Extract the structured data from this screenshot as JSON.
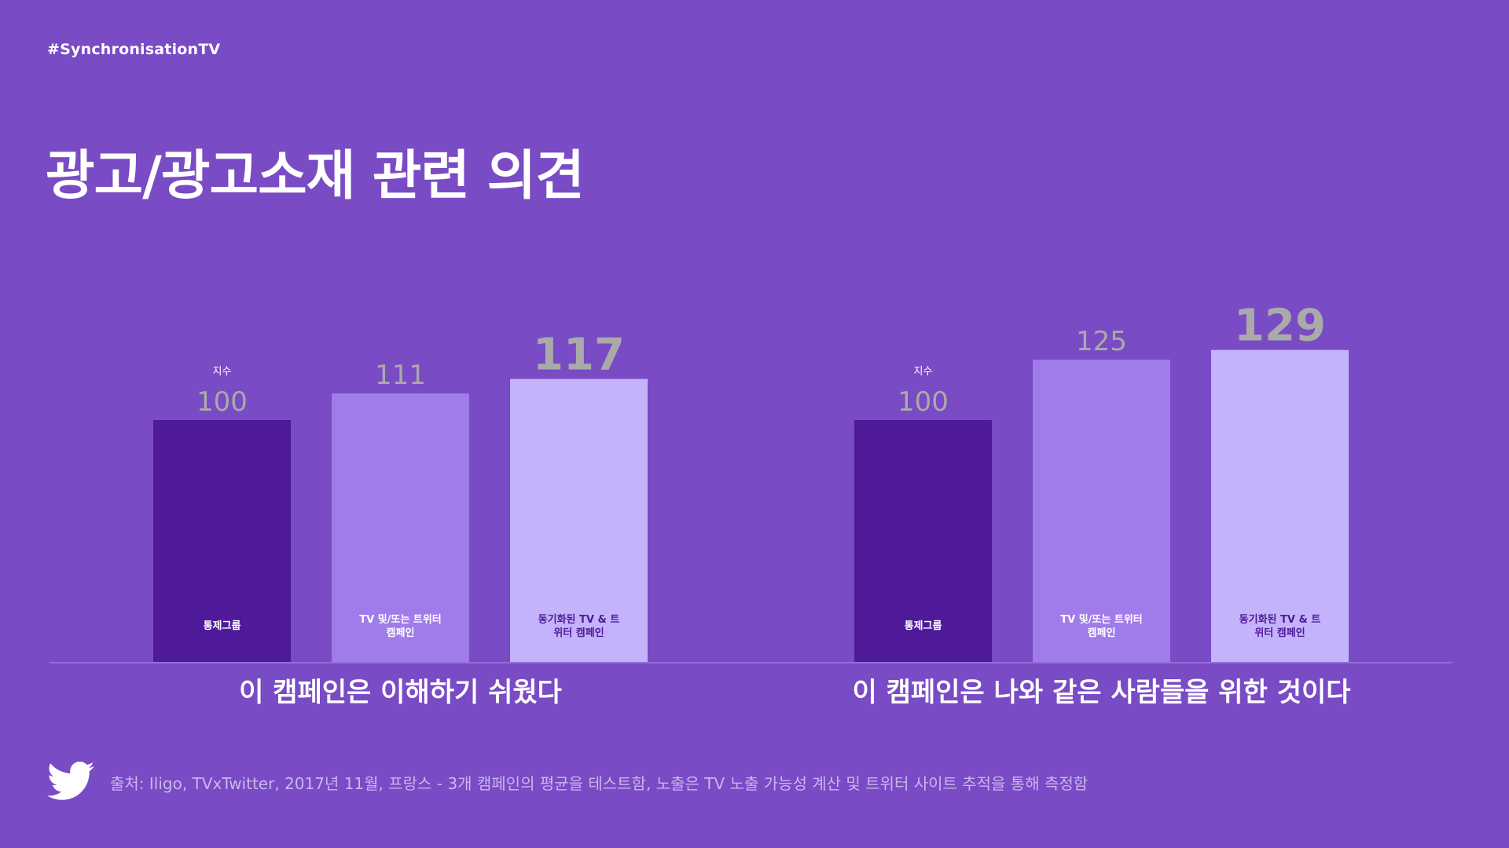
{
  "header": {
    "hashtag": "#SynchronisationTV",
    "title": "광고/광고소재 관련 의견"
  },
  "footer": {
    "source": "출처: Iligo, TVxTwitter, 2017년 11월, 프랑스 - 3개 캠페인의 평균을 테스트함, 노출은 TV 노출 가능성 계산 및 트위터 사이트 추적을 통해 측정함",
    "icon": "twitter-bird-icon"
  },
  "colors": {
    "background": "#794bc4",
    "control": "#4f1a99",
    "tv_or_twitter": "#a07bea",
    "synchronized": "#c4b3fb",
    "value_label": "#aaaaaa"
  },
  "chart_data": [
    {
      "type": "bar",
      "title": "이 캠페인은 이해하기 쉬웠다",
      "index_label": "지수",
      "categories": [
        [
          "통제그룹"
        ],
        [
          "TV 및/또는 트위터",
          "캠페인"
        ],
        [
          "동기화된 TV & 트",
          "위터 캠페인"
        ]
      ],
      "values": [
        100,
        111,
        117
      ]
    },
    {
      "type": "bar",
      "title": "이 캠페인은 나와 같은 사람들을 위한 것이다",
      "index_label": "지수",
      "categories": [
        [
          "통제그룹"
        ],
        [
          "TV 및/또는 트위터",
          "캠페인"
        ],
        [
          "동기화된 TV & 트",
          "위터 캠페인"
        ]
      ],
      "values": [
        100,
        125,
        129
      ]
    }
  ]
}
